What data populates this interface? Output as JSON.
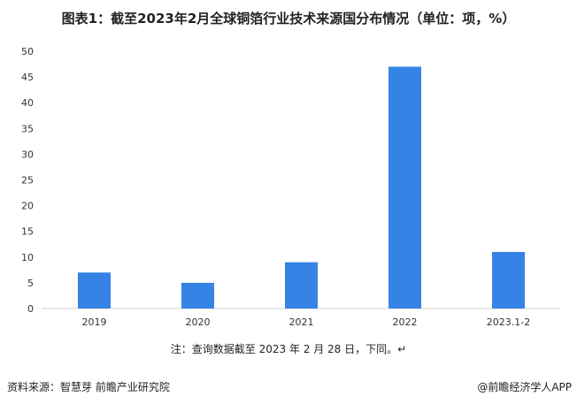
{
  "chart_data": {
    "type": "bar",
    "title": "图表1：截至2023年2月全球铜箔行业技术来源国分布情况（单位：项，%）",
    "categories": [
      "2019",
      "2020",
      "2021",
      "2022",
      "2023.1-2"
    ],
    "values": [
      7,
      5,
      9,
      47,
      11
    ],
    "ylim": [
      0,
      50
    ],
    "yticks": [
      0,
      5,
      10,
      15,
      20,
      25,
      30,
      35,
      40,
      45,
      50
    ],
    "grid": false,
    "color": "#3683e6"
  },
  "note": "注：查询数据截至 2023 年 2 月 28 日，下同。↵",
  "source": "资料来源：智慧芽 前瞻产业研究院",
  "brand": "@前瞻经济学人APP"
}
